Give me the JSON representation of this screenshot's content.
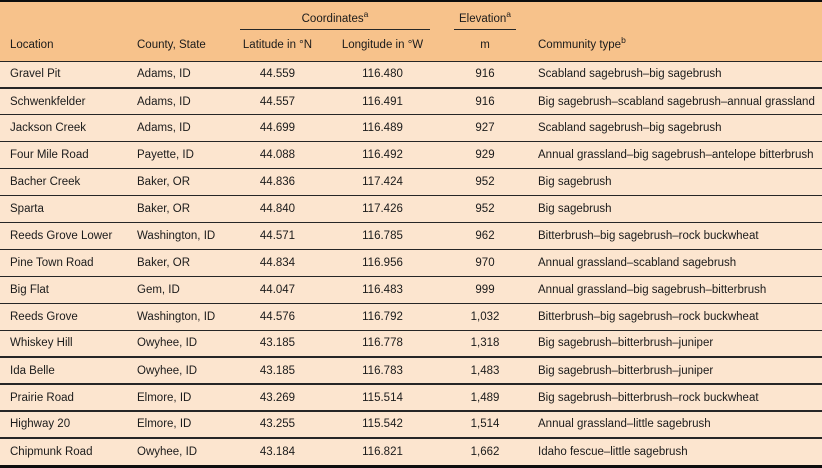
{
  "table": {
    "header": {
      "coordinates_label": "Coordinates",
      "coordinates_sup": "a",
      "elevation_label": "Elevation",
      "elevation_sup": "a",
      "columns": {
        "location": "Location",
        "county_state": "County, State",
        "latitude": "Latitude in °N",
        "longitude": "Longitude in °W",
        "elevation_unit": "m",
        "community_label": "Community type",
        "community_sup": "b"
      }
    },
    "rows": [
      {
        "location": "Gravel Pit",
        "county_state": "Adams, ID",
        "latitude": "44.559",
        "longitude": "116.480",
        "elevation": "916",
        "community": "Scabland sagebrush–big sagebrush"
      },
      {
        "location": "Schwenkfelder",
        "county_state": "Adams, ID",
        "latitude": "44.557",
        "longitude": "116.491",
        "elevation": "916",
        "community": "Big sagebrush–scabland sagebrush–annual grassland"
      },
      {
        "location": "Jackson Creek",
        "county_state": "Adams, ID",
        "latitude": "44.699",
        "longitude": "116.489",
        "elevation": "927",
        "community": "Scabland sagebrush–big sagebrush"
      },
      {
        "location": "Four Mile Road",
        "county_state": "Payette, ID",
        "latitude": "44.088",
        "longitude": "116.492",
        "elevation": "929",
        "community": "Annual grassland–big sagebrush–antelope bitterbrush"
      },
      {
        "location": "Bacher Creek",
        "county_state": "Baker, OR",
        "latitude": "44.836",
        "longitude": "117.424",
        "elevation": "952",
        "community": "Big sagebrush"
      },
      {
        "location": "Sparta",
        "county_state": "Baker, OR",
        "latitude": "44.840",
        "longitude": "117.426",
        "elevation": "952",
        "community": "Big sagebrush"
      },
      {
        "location": "Reeds Grove Lower",
        "county_state": "Washington, ID",
        "latitude": "44.571",
        "longitude": "116.785",
        "elevation": "962",
        "community": "Bitterbrush–big sagebrush–rock buckwheat"
      },
      {
        "location": "Pine Town Road",
        "county_state": "Baker, OR",
        "latitude": "44.834",
        "longitude": "116.956",
        "elevation": "970",
        "community": "Annual grassland–scabland sagebrush"
      },
      {
        "location": "Big Flat",
        "county_state": "Gem, ID",
        "latitude": "44.047",
        "longitude": "116.483",
        "elevation": "999",
        "community": "Annual grassland–big sagebrush–bitterbrush"
      },
      {
        "location": "Reeds Grove",
        "county_state": "Washington, ID",
        "latitude": "44.576",
        "longitude": "116.792",
        "elevation": "1,032",
        "community": "Bitterbrush–big sagebrush–rock buckwheat"
      },
      {
        "location": "Whiskey Hill",
        "county_state": "Owyhee, ID",
        "latitude": "43.185",
        "longitude": "116.778",
        "elevation": "1,318",
        "community": "Big sagebrush–bitterbrush–juniper"
      },
      {
        "location": "Ida Belle",
        "county_state": "Owyhee, ID",
        "latitude": "43.185",
        "longitude": "116.783",
        "elevation": "1,483",
        "community": "Big sagebrush–bitterbrush–juniper"
      },
      {
        "location": "Prairie Road",
        "county_state": "Elmore, ID",
        "latitude": "43.269",
        "longitude": "115.514",
        "elevation": "1,489",
        "community": "Big sagebrush–bitterbrush–rock buckwheat"
      },
      {
        "location": "Highway 20",
        "county_state": "Elmore, ID",
        "latitude": "43.255",
        "longitude": "115.542",
        "elevation": "1,514",
        "community": "Annual grassland–little sagebrush"
      },
      {
        "location": "Chipmunk Road",
        "county_state": "Owyhee, ID",
        "latitude": "43.184",
        "longitude": "116.821",
        "elevation": "1,662",
        "community": "Idaho fescue–little sagebrush"
      }
    ]
  },
  "colors": {
    "header_bg": "#f7c28b",
    "body_bg": "#fce5cf",
    "rule": "#262626",
    "frame": "#0d0d0d",
    "text": "#1b1b1b"
  }
}
